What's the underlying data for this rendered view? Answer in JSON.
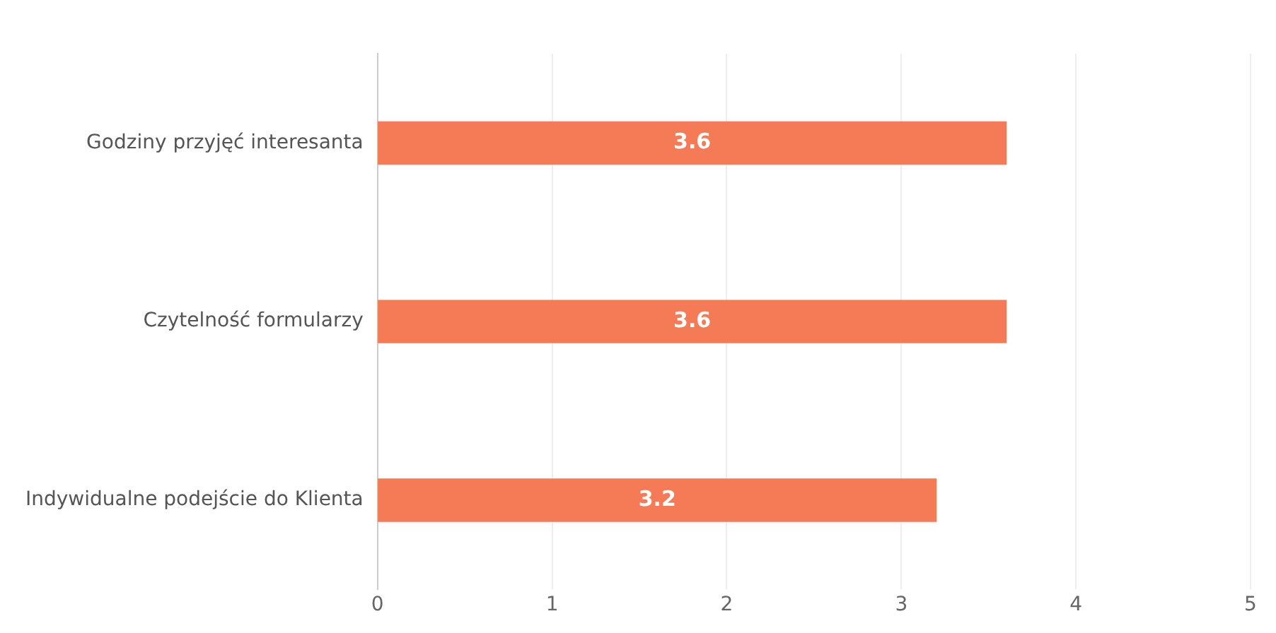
{
  "chart_data": {
    "type": "bar",
    "orientation": "horizontal",
    "categories": [
      "Godziny przyjęć interesanta",
      "Czytelność formularzy",
      "Indywidualne podejście do Klienta"
    ],
    "values": [
      3.6,
      3.6,
      3.2
    ],
    "color": "#f47b56",
    "xlim": [
      0,
      5
    ],
    "xticks": [
      0,
      1,
      2,
      3,
      4,
      5
    ],
    "grid": "x",
    "data_labels": true,
    "legend": false
  }
}
